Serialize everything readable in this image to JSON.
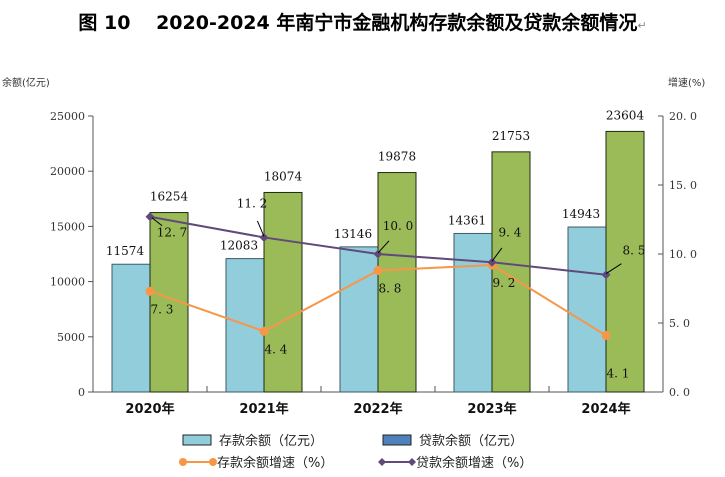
{
  "title": {
    "text": "图 10　 2020-2024 年南宁市金融机构存款余额及贷款余额情况",
    "return_mark": "↵"
  },
  "chart_data": {
    "type": "bar",
    "title": "图 10 2020-2024 年南宁市金融机构存款余额及贷款余额情况",
    "categories": [
      "2020年",
      "2021年",
      "2022年",
      "2023年",
      "2024年"
    ],
    "ylabel": "余额(亿元)",
    "y2label": "增速(%)",
    "ylim": [
      0,
      25000
    ],
    "y2lim": [
      0,
      20
    ],
    "yticks": [
      "0",
      "5000",
      "10000",
      "15000",
      "20000",
      "25000"
    ],
    "y2ticks": [
      "0.0",
      "5.0",
      "10.0",
      "15.0",
      "20.0"
    ],
    "grid": false,
    "legend_position": "bottom",
    "series": [
      {
        "name": "存款余额（亿元）",
        "kind": "bar",
        "axis": "left",
        "color": "#92cddc",
        "values": [
          11574,
          12083,
          13146,
          14361,
          14943
        ],
        "labels": [
          "11574",
          "12083",
          "13146",
          "14361",
          "14943"
        ]
      },
      {
        "name": "贷款余额（亿元）",
        "kind": "bar",
        "axis": "left",
        "color": "#9bbb59",
        "legend_color": "#4f81bd",
        "values": [
          16254,
          18074,
          19878,
          21753,
          23604
        ],
        "labels": [
          "16254",
          "18074",
          "19878",
          "21753",
          "23604"
        ]
      },
      {
        "name": "存款余额增速（%）",
        "kind": "line",
        "axis": "right",
        "color": "#f79646",
        "marker": "circle",
        "values": [
          7.3,
          4.4,
          8.8,
          9.2,
          4.1
        ],
        "labels": [
          "7.3",
          "4.4",
          "8.8",
          "9.2",
          "4.1"
        ]
      },
      {
        "name": "贷款余额增速（%）",
        "kind": "line",
        "axis": "right",
        "color": "#604a7b",
        "marker": "diamond",
        "values": [
          12.7,
          11.2,
          10.0,
          9.4,
          8.5
        ],
        "labels": [
          "12.7",
          "11.2",
          "10.0",
          "9.4",
          "8.5"
        ]
      }
    ]
  }
}
